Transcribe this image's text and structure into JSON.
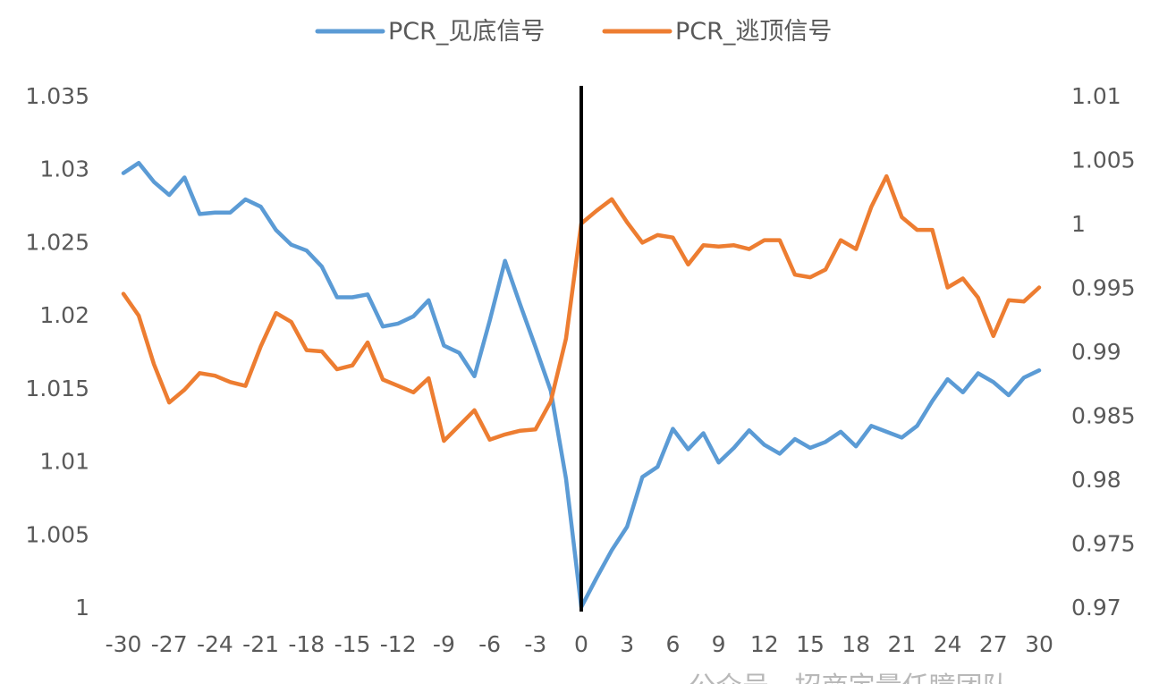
{
  "chart_data": {
    "type": "line",
    "title": "",
    "xlabel": "",
    "ylabel": "",
    "x": [
      -30,
      -29,
      -28,
      -27,
      -26,
      -25,
      -24,
      -23,
      -22,
      -21,
      -20,
      -19,
      -18,
      -17,
      -16,
      -15,
      -14,
      -13,
      -12,
      -11,
      -10,
      -9,
      -8,
      -7,
      -6,
      -5,
      -4,
      -3,
      -2,
      -1,
      0,
      1,
      2,
      3,
      4,
      5,
      6,
      7,
      8,
      9,
      10,
      11,
      12,
      13,
      14,
      15,
      16,
      17,
      18,
      19,
      20,
      21,
      22,
      23,
      24,
      25,
      26,
      27,
      28,
      29,
      30
    ],
    "x_ticks": [
      -30,
      -27,
      -24,
      -21,
      -18,
      -15,
      -12,
      -9,
      -6,
      -3,
      0,
      3,
      6,
      9,
      12,
      15,
      18,
      21,
      24,
      27,
      30
    ],
    "xlim": [
      -30,
      30
    ],
    "y_left": {
      "ylim": [
        1.0,
        1.035
      ],
      "ticks": [
        "1",
        "1.005",
        "1.01",
        "1.015",
        "1.02",
        "1.025",
        "1.03",
        "1.035"
      ]
    },
    "y_right": {
      "ylim": [
        0.97,
        1.01
      ],
      "ticks": [
        "0.97",
        "0.975",
        "0.98",
        "0.985",
        "0.99",
        "0.995",
        "1",
        "1.005",
        "1.01"
      ]
    },
    "vertical_line_x": 0,
    "grid": false,
    "legend_position": "top",
    "series": [
      {
        "name": "PCR_见底信号",
        "axis": "left",
        "color": "#5b9bd5",
        "values": [
          1.0297,
          1.0304,
          1.0291,
          1.0282,
          1.0294,
          1.0269,
          1.027,
          1.027,
          1.0279,
          1.0274,
          1.0258,
          1.0248,
          1.0244,
          1.0233,
          1.0212,
          1.0212,
          1.0214,
          1.0192,
          1.0194,
          1.0199,
          1.021,
          1.0179,
          1.0174,
          1.0158,
          1.0196,
          1.0237,
          1.0207,
          1.0178,
          1.0148,
          1.0088,
          1.0,
          1.002,
          1.0039,
          1.0055,
          1.0089,
          1.0096,
          1.0122,
          1.0108,
          1.0119,
          1.0099,
          1.0109,
          1.0121,
          1.0111,
          1.0105,
          1.0115,
          1.0109,
          1.0113,
          1.012,
          1.011,
          1.0124,
          1.012,
          1.0116,
          1.0124,
          1.0141,
          1.0156,
          1.0147,
          1.016,
          1.0154,
          1.0145,
          1.0157,
          1.0162
        ]
      },
      {
        "name": "PCR_逃顶信号",
        "axis": "right",
        "color": "#ed7d31",
        "values": [
          0.9945,
          0.9928,
          0.989,
          0.986,
          0.987,
          0.9883,
          0.9881,
          0.9876,
          0.9873,
          0.9904,
          0.993,
          0.9923,
          0.9901,
          0.99,
          0.9886,
          0.9889,
          0.9907,
          0.9878,
          0.9873,
          0.9868,
          0.9879,
          0.983,
          0.9842,
          0.9854,
          0.9831,
          0.9835,
          0.9838,
          0.9839,
          0.9861,
          0.991,
          1.0,
          1.001,
          1.0019,
          1.0001,
          0.9985,
          0.9991,
          0.9989,
          0.9968,
          0.9983,
          0.9982,
          0.9983,
          0.998,
          0.9987,
          0.9987,
          0.996,
          0.9958,
          0.9964,
          0.9987,
          0.998,
          1.0013,
          1.0037,
          1.0005,
          0.9995,
          0.9995,
          0.995,
          0.9957,
          0.9942,
          0.9912,
          0.994,
          0.9939,
          0.995
        ]
      }
    ]
  },
  "watermark": {
    "text": "公众号 · 招商定量任瞳团队"
  }
}
